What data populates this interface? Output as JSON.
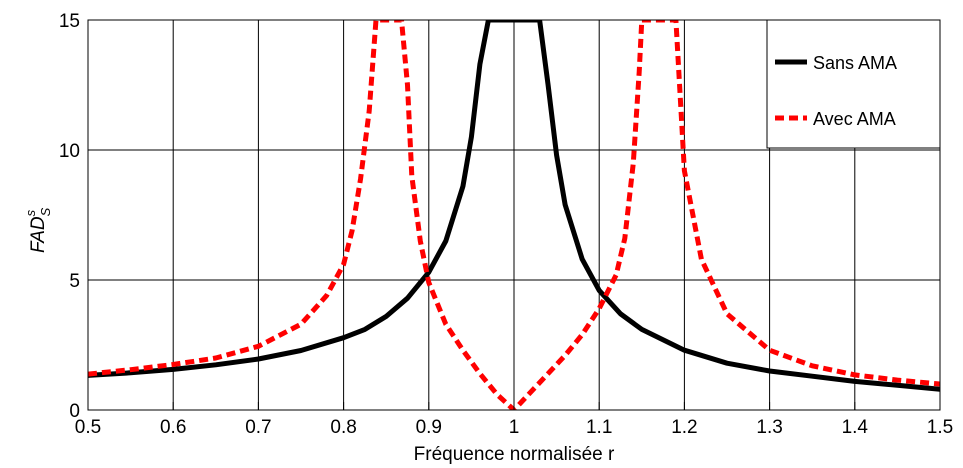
{
  "chart_data": {
    "type": "line",
    "xlabel": "Fréquence normalisée r",
    "ylabel": "FAD",
    "ylabel_sup": "s",
    "ylabel_sub": "S",
    "xlim": [
      0.5,
      1.5
    ],
    "ylim": [
      0,
      15
    ],
    "xticks": [
      "0.5",
      "0.6",
      "0.7",
      "0.8",
      "0.9",
      "1",
      "1.1",
      "1.2",
      "1.3",
      "1.4",
      "1.5"
    ],
    "yticks": [
      "0",
      "5",
      "10",
      "15"
    ],
    "grid": true,
    "legend_position": "top-right",
    "series": [
      {
        "name": "Sans AMA",
        "color": "#000000",
        "dash": "solid",
        "x": [
          0.5,
          0.55,
          0.6,
          0.65,
          0.7,
          0.75,
          0.8,
          0.825,
          0.85,
          0.875,
          0.9,
          0.92,
          0.94,
          0.95,
          0.96,
          0.97,
          1.03,
          1.04,
          1.05,
          1.06,
          1.08,
          1.1,
          1.125,
          1.15,
          1.2,
          1.25,
          1.3,
          1.35,
          1.4,
          1.45,
          1.5
        ],
        "y": [
          1.33,
          1.43,
          1.56,
          1.74,
          1.96,
          2.29,
          2.78,
          3.1,
          3.6,
          4.3,
          5.3,
          6.5,
          8.6,
          10.5,
          13.3,
          15.0,
          15.0,
          12.5,
          9.8,
          7.9,
          5.8,
          4.6,
          3.7,
          3.1,
          2.3,
          1.8,
          1.5,
          1.3,
          1.1,
          0.95,
          0.8
        ]
      },
      {
        "name": "Avec AMA",
        "color": "#ff0000",
        "dash": "dashed",
        "x": [
          0.5,
          0.55,
          0.6,
          0.65,
          0.7,
          0.75,
          0.78,
          0.8,
          0.81,
          0.82,
          0.83,
          0.838,
          0.868,
          0.875,
          0.88,
          0.89,
          0.9,
          0.92,
          0.94,
          0.96,
          0.98,
          1.0,
          1.02,
          1.04,
          1.06,
          1.08,
          1.1,
          1.12,
          1.13,
          1.14,
          1.147,
          1.15,
          1.19,
          1.2,
          1.22,
          1.25,
          1.3,
          1.35,
          1.4,
          1.45,
          1.5
        ],
        "y": [
          1.38,
          1.55,
          1.75,
          2.0,
          2.45,
          3.3,
          4.4,
          5.6,
          6.9,
          8.9,
          11.5,
          15.0,
          15.0,
          12.5,
          9.0,
          6.5,
          4.9,
          3.3,
          2.3,
          1.4,
          0.6,
          0.0,
          0.7,
          1.4,
          2.1,
          2.9,
          3.9,
          5.2,
          6.6,
          9.5,
          13.0,
          15.0,
          15.0,
          9.2,
          5.8,
          3.7,
          2.3,
          1.7,
          1.35,
          1.15,
          1.0
        ]
      }
    ]
  }
}
